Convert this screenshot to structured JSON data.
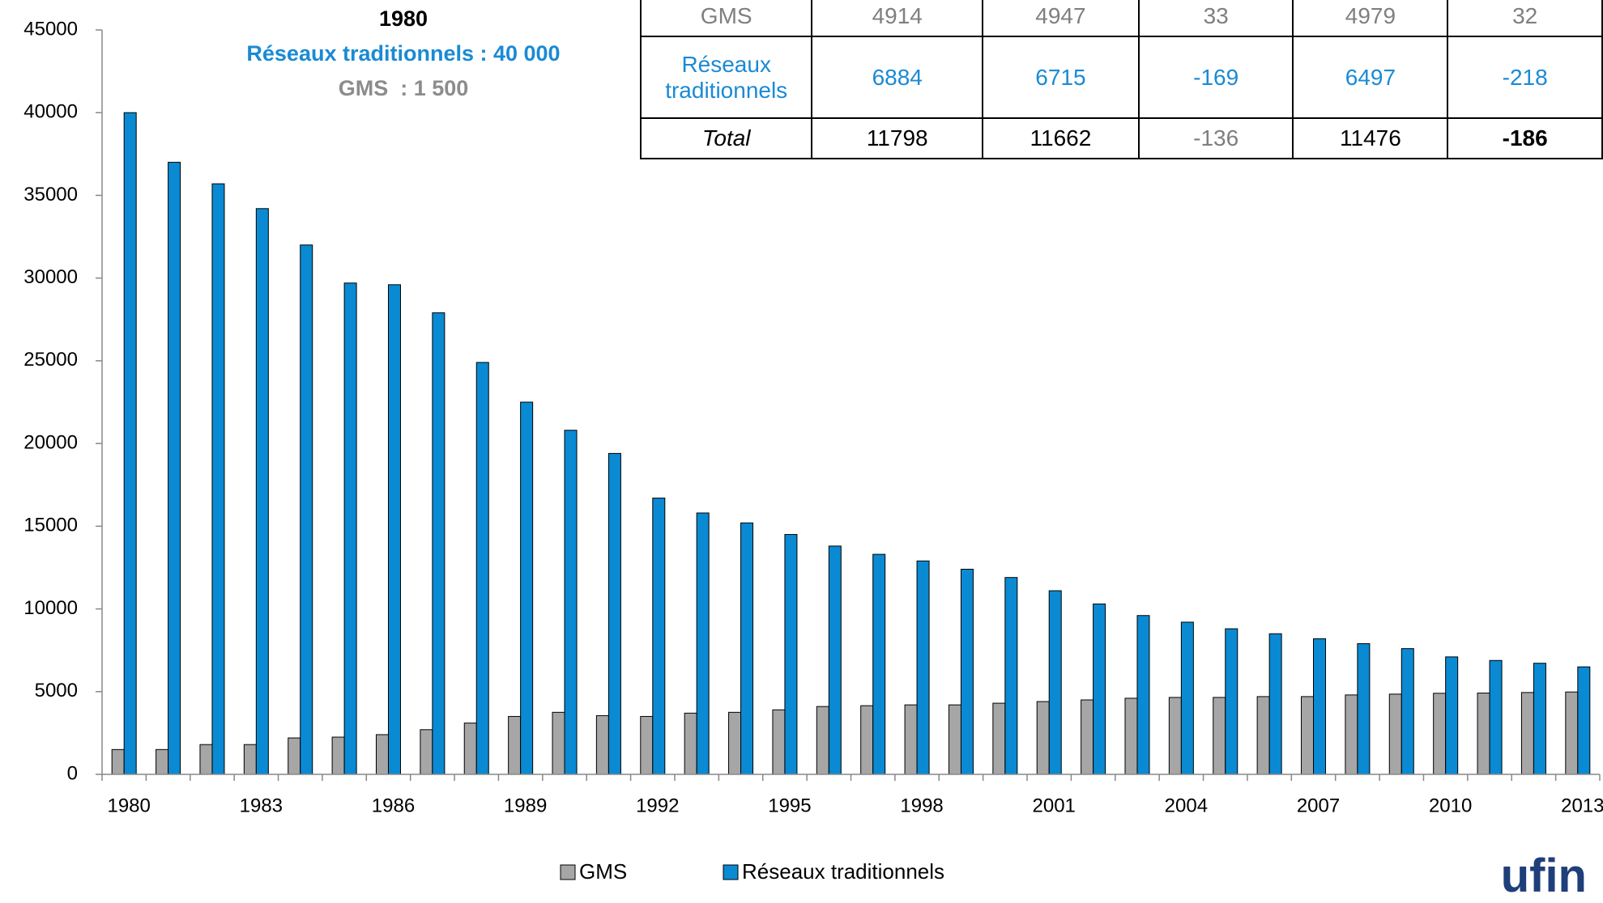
{
  "chart_data": {
    "type": "bar",
    "categories": [
      "1980",
      null,
      null,
      "1983",
      null,
      null,
      "1986",
      null,
      null,
      "1989",
      null,
      null,
      "1992",
      null,
      null,
      "1995",
      null,
      null,
      "1998",
      null,
      null,
      "2001",
      null,
      null,
      "2004",
      null,
      null,
      "2007",
      null,
      null,
      "2010",
      null,
      null,
      "2013"
    ],
    "series": [
      {
        "name": "GMS",
        "color": "#a6a6a6",
        "values": [
          1500,
          1500,
          1800,
          1800,
          2200,
          2250,
          2400,
          2700,
          3100,
          3500,
          3750,
          3550,
          3500,
          3700,
          3750,
          3900,
          4100,
          4150,
          4200,
          4200,
          4300,
          4400,
          4500,
          4600,
          4650,
          4650,
          4700,
          4700,
          4800,
          4850,
          4900,
          4914,
          4947,
          4979
        ]
      },
      {
        "name": "Réseaux traditionnels",
        "color": "#0a8ad2",
        "values": [
          40000,
          37000,
          35700,
          34200,
          32000,
          29700,
          29600,
          27900,
          24900,
          22500,
          20800,
          19400,
          16700,
          15800,
          15200,
          14500,
          13800,
          13300,
          12900,
          12400,
          11900,
          11100,
          10300,
          9600,
          9200,
          8800,
          8500,
          8200,
          7900,
          7600,
          7100,
          6884,
          6715,
          6497
        ]
      }
    ],
    "ylim": [
      0,
      45000
    ],
    "yticks": [
      0,
      5000,
      10000,
      15000,
      20000,
      25000,
      30000,
      35000,
      40000,
      45000
    ],
    "annotations": [
      "1980",
      "Réseaux traditionnels : 40 000",
      "GMS  : 1 500"
    ],
    "legend": "bottom"
  },
  "table": {
    "rows": [
      [
        "GMS",
        "4914",
        "4947",
        "33",
        "4979",
        "32"
      ],
      [
        "Réseaux traditionnels",
        "6884",
        "6715",
        "-169",
        "6497",
        "-218"
      ],
      [
        "Total",
        "11798",
        "11662",
        "-136",
        "11476",
        "-186"
      ]
    ]
  },
  "logo": "ufin"
}
